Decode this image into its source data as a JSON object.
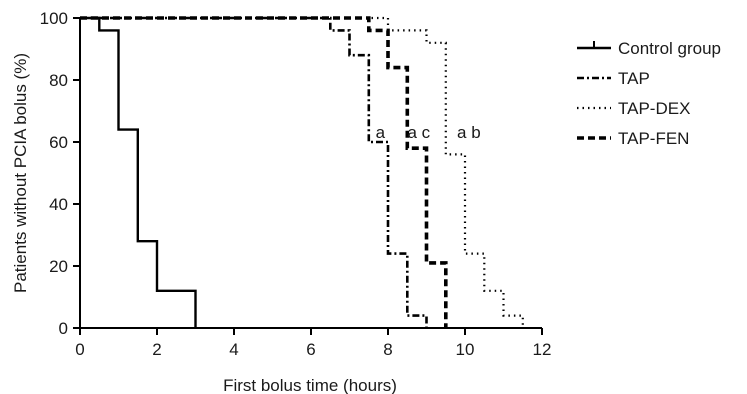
{
  "chart_data": {
    "type": "line",
    "subtype": "kaplan-meier step",
    "xlabel": "First bolus time (hours)",
    "ylabel": "Patients without PCIA bolus (%)",
    "xlim": [
      0,
      12
    ],
    "ylim": [
      0,
      100
    ],
    "xticks": [
      0,
      2,
      4,
      6,
      8,
      10,
      12
    ],
    "yticks": [
      0,
      20,
      40,
      60,
      80,
      100
    ],
    "grid": false,
    "legend_position": "right",
    "series": [
      {
        "name": "Control group",
        "line_style": "solid",
        "color": "#000000",
        "points": [
          [
            0,
            100
          ],
          [
            0.5,
            100
          ],
          [
            0.5,
            96
          ],
          [
            1,
            96
          ],
          [
            1,
            64
          ],
          [
            1.5,
            64
          ],
          [
            1.5,
            28
          ],
          [
            2,
            28
          ],
          [
            2,
            12
          ],
          [
            3,
            12
          ],
          [
            3,
            0
          ]
        ]
      },
      {
        "name": "TAP",
        "line_style": "dash-dot",
        "color": "#000000",
        "points": [
          [
            0,
            100
          ],
          [
            6.5,
            100
          ],
          [
            6.5,
            96
          ],
          [
            7,
            96
          ],
          [
            7,
            88
          ],
          [
            7.5,
            88
          ],
          [
            7.5,
            60
          ],
          [
            8,
            60
          ],
          [
            8,
            24
          ],
          [
            8.5,
            24
          ],
          [
            8.5,
            4
          ],
          [
            9,
            4
          ],
          [
            9,
            0
          ]
        ]
      },
      {
        "name": "TAP-DEX",
        "line_style": "dotted",
        "color": "#000000",
        "points": [
          [
            0,
            100
          ],
          [
            8,
            100
          ],
          [
            8,
            96
          ],
          [
            9,
            96
          ],
          [
            9,
            92
          ],
          [
            9.5,
            92
          ],
          [
            9.5,
            64
          ],
          [
            9.5,
            56
          ],
          [
            10,
            56
          ],
          [
            10,
            24
          ],
          [
            10.5,
            24
          ],
          [
            10.5,
            12
          ],
          [
            11,
            12
          ],
          [
            11,
            4
          ],
          [
            11.5,
            4
          ],
          [
            11.5,
            0
          ]
        ]
      },
      {
        "name": "TAP-FEN",
        "line_style": "bold dashed",
        "color": "#000000",
        "points": [
          [
            0,
            100
          ],
          [
            7.5,
            100
          ],
          [
            7.5,
            96
          ],
          [
            8,
            96
          ],
          [
            8,
            84
          ],
          [
            8.5,
            84
          ],
          [
            8.5,
            58
          ],
          [
            9,
            58
          ],
          [
            9,
            21
          ],
          [
            9.5,
            21
          ],
          [
            9.5,
            0
          ]
        ]
      }
    ],
    "annotations": [
      {
        "text": "a",
        "x": 7.8,
        "y": 60
      },
      {
        "text": "a c",
        "x": 8.8,
        "y": 60
      },
      {
        "text": "a b",
        "x": 10.1,
        "y": 60
      }
    ]
  }
}
